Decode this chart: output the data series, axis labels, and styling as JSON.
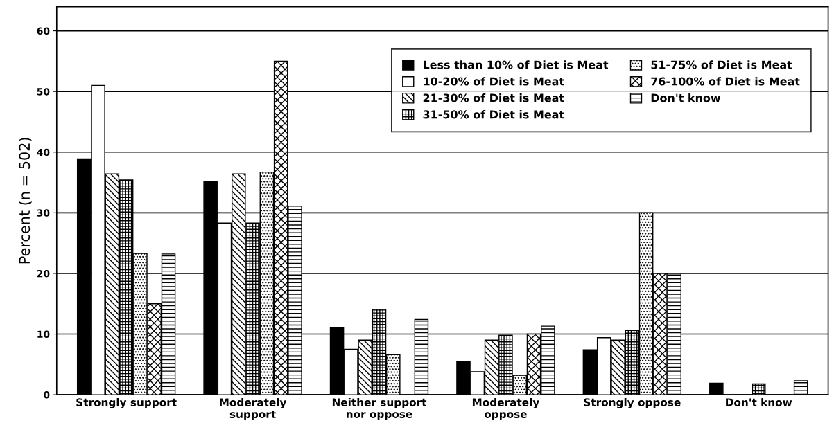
{
  "chart_data": {
    "type": "bar",
    "ylabel": "Percent (n = 502)",
    "categories": [
      "Strongly support",
      "Moderately\nsupport",
      "Neither support\nnor oppose",
      "Moderately\noppose",
      "Strongly oppose",
      "Don't know"
    ],
    "series": [
      {
        "name": "Less than 10% of Diet is Meat",
        "color": "#000000",
        "values": [
          38.9,
          35.2,
          11.1,
          5.5,
          7.4,
          1.9
        ]
      },
      {
        "name": "10-20% of Diet is Meat",
        "color": "#ffffff",
        "values": [
          51.0,
          28.3,
          7.5,
          3.8,
          9.4,
          null
        ]
      },
      {
        "name": "21-30% of Diet is Meat",
        "color": "#000000",
        "values": [
          36.4,
          36.4,
          9.0,
          9.0,
          9.0,
          null
        ]
      },
      {
        "name": "31-50% of Diet is Meat",
        "color": "#000000",
        "values": [
          35.4,
          28.3,
          14.1,
          9.8,
          10.6,
          1.8
        ]
      },
      {
        "name": "51-75% of Diet is Meat",
        "color": "#000000",
        "values": [
          23.3,
          36.7,
          6.6,
          3.2,
          30.0,
          null
        ]
      },
      {
        "name": "76-100% of Diet is Meat",
        "color": "#000000",
        "values": [
          15.0,
          55.0,
          null,
          10.0,
          20.0,
          null
        ]
      },
      {
        "name": "Don't know",
        "color": "#000000",
        "values": [
          23.2,
          31.1,
          12.4,
          11.3,
          20.0,
          2.3
        ]
      }
    ],
    "ylim": [
      0,
      64
    ],
    "yticks": [
      0,
      10,
      20,
      30,
      40,
      50,
      60
    ],
    "grid": "y",
    "legend": "top right"
  }
}
